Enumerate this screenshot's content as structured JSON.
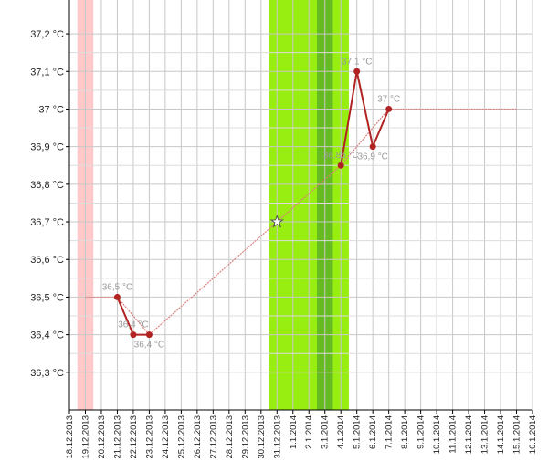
{
  "chart_data": {
    "type": "line",
    "categories": [
      "18.12.2013",
      "19.12.2013",
      "20.12.2013",
      "21.12.2013",
      "22.12.2013",
      "23.12.2013",
      "24.12.2013",
      "25.12.2013",
      "26.12.2013",
      "27.12.2013",
      "28.12.2013",
      "29.12.2013",
      "30.12.2013",
      "31.12.2013",
      "1.1.2014",
      "2.1.2014",
      "3.1.2014",
      "4.1.2014",
      "5.1.2014",
      "6.1.2014",
      "7.1.2014",
      "8.1.2014",
      "9.1.2014",
      "10.1.2014",
      "11.1.2014",
      "12.1.2014",
      "13.1.2014",
      "14.1.2014",
      "15.1.2014",
      "16.1.2014"
    ],
    "series": [
      {
        "color": "#b22222",
        "values": [
          null,
          null,
          null,
          36.5,
          36.4,
          36.4,
          null,
          null,
          null,
          null,
          null,
          null,
          null,
          null,
          null,
          null,
          null,
          36.85,
          37.1,
          36.9,
          37.0,
          null,
          null,
          null,
          null,
          null,
          null,
          null,
          null,
          null
        ],
        "value_labels": [
          null,
          null,
          null,
          "36,5 °C",
          "36,4 °C",
          "36,4 °C",
          null,
          null,
          null,
          null,
          null,
          null,
          null,
          null,
          null,
          null,
          null,
          "36,85 °C",
          "37,1 °C",
          "36,9 °C",
          "37 °C",
          null,
          null,
          null,
          null,
          null,
          null,
          null,
          null,
          null
        ]
      },
      {
        "color": "#d9817f",
        "x": [
          "19.12.2013",
          "21.12.2013",
          "23.12.2013",
          "31.12.2013",
          "4.1.2014",
          "7.1.2014",
          "15.1.2014"
        ],
        "values": [
          36.5,
          36.5,
          36.4,
          36.7,
          36.85,
          37.0,
          37.0
        ]
      }
    ],
    "marker": {
      "x": "31.12.2013",
      "value": 36.7
    },
    "bands": [
      {
        "from": "19.12.2013",
        "to": "19.12.2013",
        "color": "#ffc9c9"
      },
      {
        "from": "31.12.2013",
        "to": "4.1.2014",
        "color": "#99ee11"
      },
      {
        "from": "3.1.2014",
        "to": "3.1.2014",
        "color": "#66bb22"
      }
    ],
    "ylim": [
      36.2,
      37.29
    ],
    "yticks": [
      {
        "value": 36.3,
        "label": "36,3 °C"
      },
      {
        "value": 36.4,
        "label": "36,4 °C"
      },
      {
        "value": 36.5,
        "label": "36,5 °C"
      },
      {
        "value": 36.6,
        "label": "36,6 °C"
      },
      {
        "value": 36.7,
        "label": "36,7 °C"
      },
      {
        "value": 36.8,
        "label": "36,8 °C"
      },
      {
        "value": 36.9,
        "label": "36,9 °C"
      },
      {
        "value": 37,
        "label": "37 °C"
      },
      {
        "value": 37.1,
        "label": "37,1 °C"
      },
      {
        "value": 37.2,
        "label": "37,2 °C"
      }
    ],
    "grid": true
  }
}
